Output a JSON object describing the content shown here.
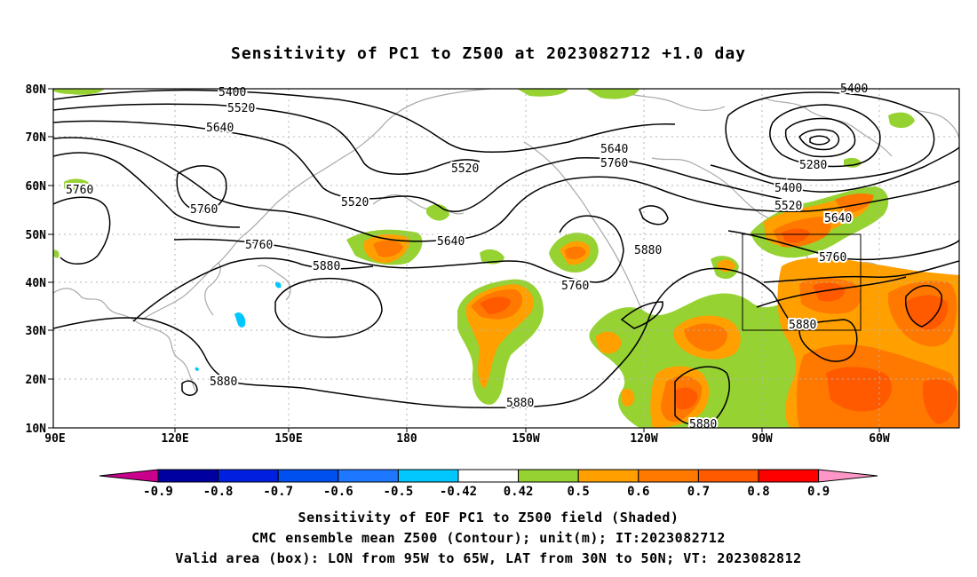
{
  "title": "Sensitivity of PC1 to Z500 at 2023082712 +1.0 day",
  "map": {
    "lat_labels": [
      "80N",
      "70N",
      "60N",
      "50N",
      "40N",
      "30N",
      "20N",
      "10N"
    ],
    "lon_labels": [
      "90E",
      "120E",
      "150E",
      "180",
      "150W",
      "120W",
      "90W",
      "60W"
    ],
    "contour_labels": [
      "5400",
      "5520",
      "5640",
      "5760",
      "5760",
      "5760",
      "5520",
      "5520",
      "5640",
      "5760",
      "5640",
      "5880",
      "5880",
      "5880",
      "5880",
      "5760",
      "5880",
      "5280",
      "5400",
      "5520",
      "5640",
      "5760",
      "5880",
      "5880",
      "5400"
    ],
    "valid_box": {
      "lon_from": "95W",
      "lon_to": "65W",
      "lat_from": "30N",
      "lat_to": "50N"
    }
  },
  "colorbar": {
    "labels": [
      "-0.9",
      "-0.8",
      "-0.7",
      "-0.6",
      "-0.5",
      "-0.42",
      "0.42",
      "0.5",
      "0.6",
      "0.7",
      "0.8",
      "0.9"
    ],
    "colors": [
      "#0000a0",
      "#0020e0",
      "#0050f0",
      "#1e78ff",
      "#00c8ff",
      "#ffffff",
      "#96d232",
      "#ffa000",
      "#ff7800",
      "#ff5a00",
      "#ff0000"
    ],
    "low_cap_color": "#c8008c",
    "high_cap_color": "#ff96c8"
  },
  "captions": {
    "line1": "Sensitivity of EOF PC1 to Z500 field (Shaded)",
    "line2": "CMC ensemble mean Z500 (Contour); unit(m); IT:2023082712",
    "line3": "Valid area (box): LON from 95W to 65W, LAT from 30N to 50N; VT: 2023082812"
  }
}
